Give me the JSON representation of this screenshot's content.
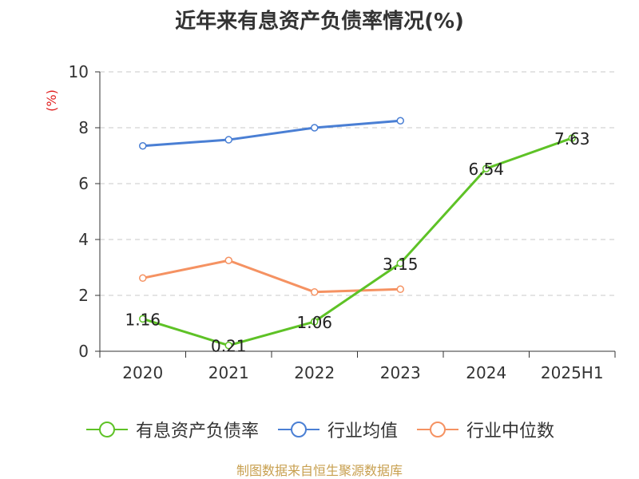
{
  "chart_data": {
    "type": "line",
    "title": "近年来有息资产负债率情况(%)",
    "ylabel": "(%)",
    "xlabel": "",
    "categories": [
      "2020",
      "2021",
      "2022",
      "2023",
      "2024",
      "2025H1"
    ],
    "ylim": [
      0,
      10
    ],
    "yticks": [
      0,
      2,
      4,
      6,
      8,
      10
    ],
    "grid": true,
    "legend_position": "bottom",
    "series": [
      {
        "name": "有息资产负债率",
        "color": "#5ec226",
        "values": [
          1.16,
          0.21,
          1.06,
          3.15,
          6.54,
          7.63
        ],
        "labels": [
          "1.16",
          "0.21",
          "1.06",
          "3.15",
          "6.54",
          "7.63"
        ]
      },
      {
        "name": "行业均值",
        "color": "#4a7fd4",
        "values": [
          7.35,
          7.57,
          8.0,
          8.25,
          null,
          null
        ]
      },
      {
        "name": "行业中位数",
        "color": "#f59262",
        "values": [
          2.62,
          3.25,
          2.12,
          2.22,
          null,
          null
        ]
      }
    ]
  },
  "source": "制图数据来自恒生聚源数据库"
}
